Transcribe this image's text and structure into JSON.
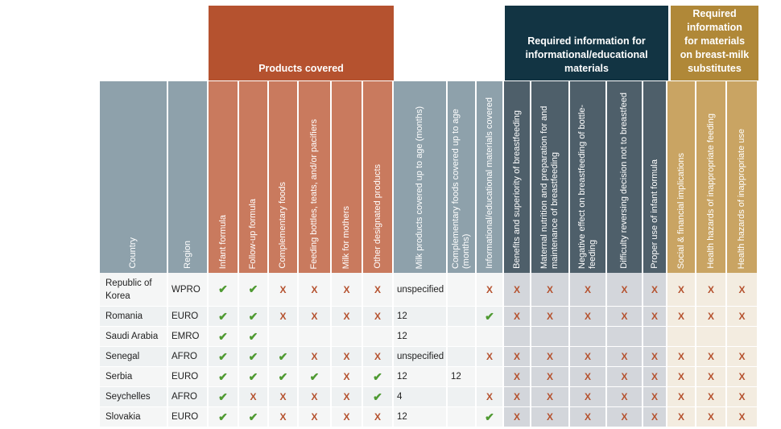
{
  "groups": {
    "products": "Products covered",
    "info": "Required information for informational/educational materials",
    "bms_line1": "Required",
    "bms_line2": "information",
    "bms_line3": "for materials",
    "bms_line4": "on breast-milk",
    "bms_line5": "substitutes"
  },
  "headers": [
    "Country",
    "Region",
    "Infant formula",
    "Follow-up formula",
    "Complementary foods",
    "Feeding bottles, teats, and/or pacifiers",
    "Milk for mothers",
    "Other designated products",
    "Milk products covered up to age (months)",
    "Complementary foods covered up to age (months)",
    "Informational/educational materials covered",
    "Benefits and superiority of breastfeeding",
    "Maternal nutrition and preparation for and maintenance of breastfeeding",
    "Negative effect on breastfeeding of bottle-feeding",
    "Difficulty reversing decision not to breastfeed",
    "Proper use of infant formula",
    "Social & financial implications",
    "Health hazards of inappropriate feeding",
    "Health hazards of inappropriate use"
  ],
  "symbols": {
    "check": "✔",
    "cross": "X"
  },
  "rows": [
    {
      "country": "Republic of Korea",
      "region": "WPRO",
      "cells": [
        "check",
        "check",
        "cross",
        "cross",
        "cross",
        "cross",
        "unspecified",
        "",
        "cross",
        "cross",
        "cross",
        "cross",
        "cross",
        "cross",
        "cross",
        "cross",
        "cross"
      ]
    },
    {
      "country": "Romania",
      "region": "EURO",
      "cells": [
        "check",
        "check",
        "cross",
        "cross",
        "cross",
        "cross",
        "12",
        "",
        "check",
        "cross",
        "cross",
        "cross",
        "cross",
        "cross",
        "cross",
        "cross",
        "cross"
      ]
    },
    {
      "country": "Saudi Arabia",
      "region": "EMRO",
      "cells": [
        "check",
        "check",
        "",
        "",
        "",
        "",
        "12",
        "",
        "",
        "",
        "",
        "",
        "",
        "",
        "",
        "",
        ""
      ]
    },
    {
      "country": "Senegal",
      "region": "AFRO",
      "cells": [
        "check",
        "check",
        "check",
        "cross",
        "cross",
        "cross",
        "unspecified",
        "",
        "cross",
        "cross",
        "cross",
        "cross",
        "cross",
        "cross",
        "cross",
        "cross",
        "cross"
      ]
    },
    {
      "country": "Serbia",
      "region": "EURO",
      "cells": [
        "check",
        "check",
        "check",
        "check",
        "cross",
        "check",
        "12",
        "12",
        "",
        "cross",
        "cross",
        "cross",
        "cross",
        "cross",
        "cross",
        "cross",
        "cross"
      ]
    },
    {
      "country": "Seychelles",
      "region": "AFRO",
      "cells": [
        "check",
        "cross",
        "cross",
        "cross",
        "cross",
        "check",
        "4",
        "",
        "cross",
        "cross",
        "cross",
        "cross",
        "cross",
        "cross",
        "cross",
        "cross",
        "cross"
      ]
    },
    {
      "country": "Slovakia",
      "region": "EURO",
      "cells": [
        "check",
        "check",
        "cross",
        "cross",
        "cross",
        "cross",
        "12",
        "",
        "check",
        "cross",
        "cross",
        "cross",
        "cross",
        "cross",
        "cross",
        "cross",
        "cross"
      ]
    }
  ]
}
